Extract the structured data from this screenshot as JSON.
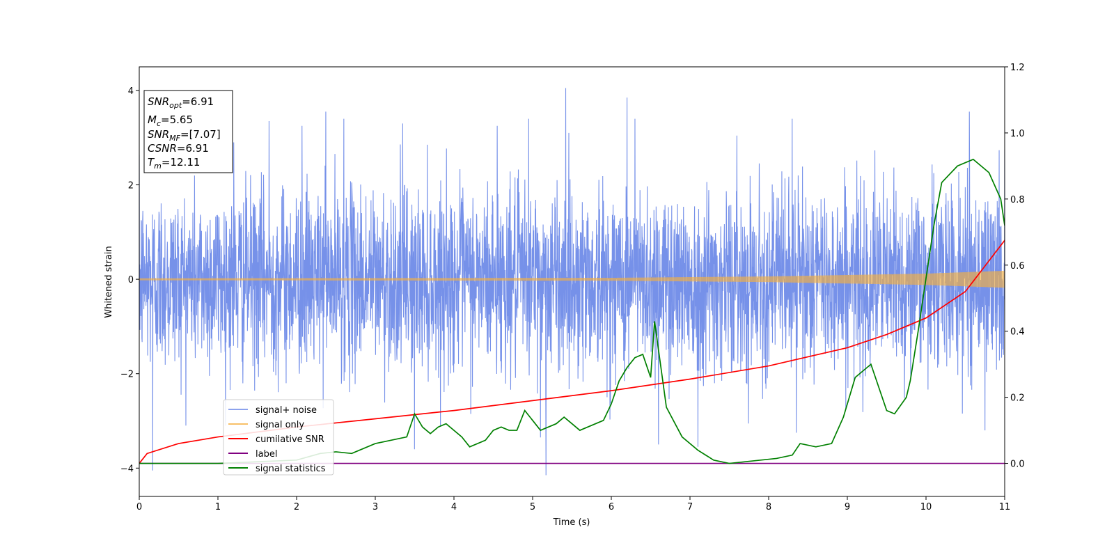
{
  "chart_data": {
    "type": "line",
    "xlabel": "Time (s)",
    "ylabel": "Whitened strain",
    "xlim": [
      0,
      11
    ],
    "ylim_left": [
      -4.6,
      4.5
    ],
    "ylim_right": [
      -0.1,
      1.2
    ],
    "x_ticks": [
      "0",
      "1",
      "2",
      "3",
      "4",
      "5",
      "6",
      "7",
      "8",
      "9",
      "10",
      "11"
    ],
    "y_ticks_left": [
      "−4",
      "−2",
      "0",
      "2",
      "4"
    ],
    "y_ticks_left_values": [
      -4,
      -2,
      0,
      2,
      4
    ],
    "y_ticks_right": [
      "0.0",
      "0.2",
      "0.4",
      "0.6",
      "0.8",
      "1.0",
      "1.2"
    ],
    "y_ticks_right_values": [
      0.0,
      0.2,
      0.4,
      0.6,
      0.8,
      1.0,
      1.2
    ],
    "legend_position": "lower-left",
    "annotation": {
      "snr_opt": {
        "main": "SNR",
        "sub": "opt",
        "value": "=6.91"
      },
      "mc": {
        "main": "M",
        "sub": "c",
        "value": "=5.65"
      },
      "snr_mf": {
        "main": "SNR",
        "sub": "MF",
        "value": "=[7.07]"
      },
      "csnr": {
        "main": "CSNR",
        "value": "=6.91"
      },
      "tm": {
        "main": "T",
        "sub": "m",
        "value": "=12.11"
      }
    },
    "series": [
      {
        "name": "signal+ noise",
        "axis": "left",
        "color": "#6f8be8",
        "kind": "noise",
        "amplitude_sigma": 1.0,
        "peaks": [
          [
            0.17,
            -4.05
          ],
          [
            1.2,
            2.9
          ],
          [
            1.65,
            3.35
          ],
          [
            2.07,
            3.25
          ],
          [
            2.6,
            3.4
          ],
          [
            3.35,
            3.3
          ],
          [
            3.5,
            -3.6
          ],
          [
            4.95,
            3.4
          ],
          [
            5.17,
            -4.15
          ],
          [
            5.42,
            4.05
          ],
          [
            6.2,
            3.85
          ],
          [
            6.3,
            3.4
          ],
          [
            6.6,
            -3.5
          ],
          [
            7.1,
            -3.55
          ],
          [
            8.3,
            3.4
          ],
          [
            10.55,
            3.55
          ],
          [
            10.75,
            -3.2
          ],
          [
            11.0,
            2.75
          ],
          [
            2.37,
            3.55
          ],
          [
            4.55,
            3.25
          ],
          [
            5.1,
            -3.35
          ],
          [
            8.35,
            -3.25
          ]
        ]
      },
      {
        "name": "signal only",
        "axis": "left",
        "color": "#f5b041",
        "kind": "chirp",
        "envelope": [
          [
            0,
            0.02
          ],
          [
            6,
            0.03
          ],
          [
            8,
            0.06
          ],
          [
            10,
            0.12
          ],
          [
            11,
            0.18
          ]
        ]
      },
      {
        "name": "cumilative SNR",
        "axis": "right",
        "color": "#ff0000",
        "x": [
          0,
          0.1,
          0.5,
          1,
          2,
          3,
          4,
          5,
          6,
          7,
          8,
          9,
          9.5,
          10,
          10.5,
          11
        ],
        "y": [
          0.0,
          0.03,
          0.06,
          0.08,
          0.11,
          0.135,
          0.16,
          0.19,
          0.22,
          0.255,
          0.295,
          0.35,
          0.39,
          0.44,
          0.52,
          0.675
        ]
      },
      {
        "name": "label",
        "axis": "right",
        "color": "#800080",
        "x": [
          0,
          11
        ],
        "y": [
          0.0,
          0.0
        ]
      },
      {
        "name": "signal statistics",
        "axis": "right",
        "color": "#008000",
        "x": [
          0,
          1,
          1.5,
          2,
          2.3,
          2.5,
          2.7,
          3,
          3.2,
          3.4,
          3.5,
          3.6,
          3.7,
          3.8,
          3.9,
          4.1,
          4.2,
          4.4,
          4.5,
          4.6,
          4.7,
          4.8,
          4.9,
          5.0,
          5.1,
          5.2,
          5.3,
          5.4,
          5.5,
          5.6,
          5.7,
          5.8,
          5.9,
          6.0,
          6.1,
          6.2,
          6.3,
          6.4,
          6.5,
          6.55,
          6.7,
          6.9,
          7.1,
          7.3,
          7.5,
          7.7,
          7.9,
          8.1,
          8.3,
          8.4,
          8.6,
          8.8,
          8.95,
          9.1,
          9.3,
          9.4,
          9.5,
          9.6,
          9.75,
          9.8,
          9.9,
          10.0,
          10.1,
          10.2,
          10.4,
          10.6,
          10.8,
          10.95,
          11.0
        ],
        "y": [
          0.0,
          0.0,
          0.005,
          0.01,
          0.03,
          0.035,
          0.03,
          0.06,
          0.07,
          0.08,
          0.15,
          0.11,
          0.09,
          0.11,
          0.12,
          0.08,
          0.05,
          0.07,
          0.1,
          0.11,
          0.1,
          0.1,
          0.16,
          0.13,
          0.1,
          0.11,
          0.12,
          0.14,
          0.12,
          0.1,
          0.11,
          0.12,
          0.13,
          0.18,
          0.25,
          0.29,
          0.32,
          0.33,
          0.26,
          0.43,
          0.17,
          0.08,
          0.04,
          0.01,
          0.0,
          0.005,
          0.01,
          0.015,
          0.025,
          0.06,
          0.05,
          0.06,
          0.14,
          0.26,
          0.3,
          0.23,
          0.16,
          0.15,
          0.2,
          0.25,
          0.4,
          0.56,
          0.72,
          0.85,
          0.9,
          0.92,
          0.88,
          0.8,
          0.72
        ]
      }
    ]
  }
}
